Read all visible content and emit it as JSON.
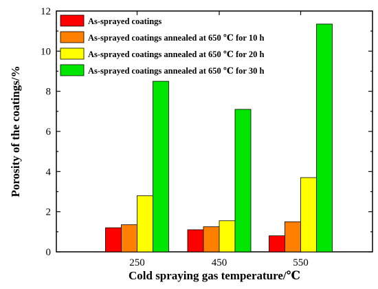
{
  "chart_data": {
    "type": "bar",
    "categories": [
      "250",
      "450",
      "550"
    ],
    "series": [
      {
        "name": "As-sprayed coatings",
        "color": "#ff0000",
        "values": [
          1.2,
          1.1,
          0.8
        ]
      },
      {
        "name": "As-sprayed coatings annealed at 650 ℃ for 10 h",
        "color": "#ff7f00",
        "values": [
          1.35,
          1.25,
          1.5
        ]
      },
      {
        "name": "As-sprayed coatings annealed at 650 ℃ for 20 h",
        "color": "#ffff00",
        "values": [
          2.8,
          1.55,
          3.7
        ]
      },
      {
        "name": "As-sprayed coatings annealed at 650 ℃ for 30 h",
        "color": "#00e600",
        "values": [
          8.5,
          7.1,
          11.35
        ]
      }
    ],
    "xlabel": "Cold spraying gas temperature/℃",
    "ylabel": "Porosity of the coatings/%",
    "ylim": [
      0,
      12
    ],
    "yticks": [
      "0",
      "2",
      "4",
      "6",
      "8",
      "10",
      "12"
    ],
    "legend_position": "top-left",
    "grid": false
  }
}
